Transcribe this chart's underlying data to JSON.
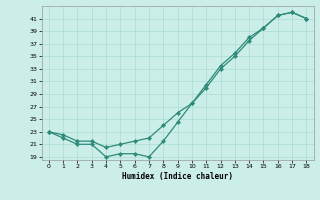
{
  "xlabel": "Humidex (Indice chaleur)",
  "x_values": [
    0,
    1,
    2,
    3,
    4,
    5,
    6,
    7,
    8,
    9,
    10,
    11,
    12,
    13,
    14,
    15,
    16,
    17,
    18
  ],
  "line1_y": [
    23,
    22,
    21,
    21,
    19,
    19.5,
    19.5,
    19,
    21.5,
    24.5,
    27.5,
    30,
    33,
    35,
    37.5,
    39.5,
    41.5,
    42,
    41
  ],
  "line2_y": [
    23,
    22.5,
    21.5,
    21.5,
    20.5,
    21,
    21.5,
    22,
    24,
    26,
    27.5,
    30.5,
    33.5,
    35.5,
    38,
    39.5,
    41.5,
    42,
    41
  ],
  "color": "#2e8b7a",
  "bg_color": "#cceee8",
  "grid_color": "#aaddd5",
  "ylim_min": 18.5,
  "ylim_max": 43,
  "yticks": [
    19,
    21,
    23,
    25,
    27,
    29,
    31,
    33,
    35,
    37,
    39,
    41
  ],
  "xticks": [
    0,
    1,
    2,
    3,
    4,
    5,
    6,
    7,
    8,
    9,
    10,
    11,
    12,
    13,
    14,
    15,
    16,
    17,
    18
  ],
  "xlim_min": -0.5,
  "xlim_max": 18.5
}
